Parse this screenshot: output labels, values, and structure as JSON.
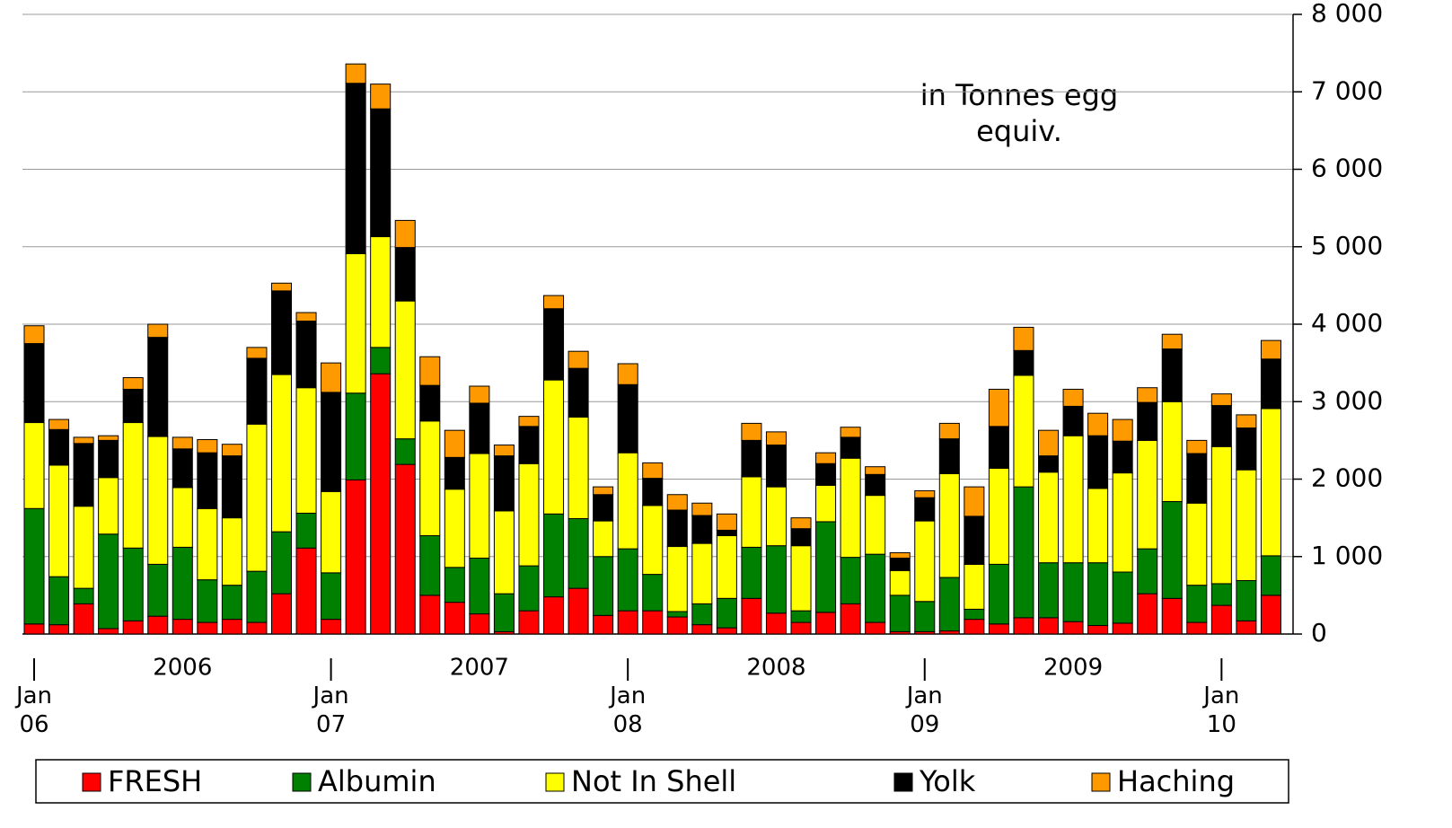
{
  "chart_data": {
    "type": "bar",
    "stacked": true,
    "annotation": "in Tonnes egg equiv.",
    "categories": [
      "Jan 06",
      null,
      null,
      null,
      null,
      null,
      null,
      null,
      null,
      null,
      null,
      null,
      "Jan 07",
      null,
      null,
      null,
      null,
      null,
      null,
      null,
      null,
      null,
      null,
      null,
      "Jan 08",
      null,
      null,
      null,
      null,
      null,
      null,
      null,
      null,
      null,
      null,
      null,
      "Jan 09",
      null,
      null,
      null,
      null,
      null,
      null,
      null,
      null,
      null,
      null,
      null,
      "Jan 10",
      null,
      null
    ],
    "year_labels": [
      "2006",
      "2007",
      "2008",
      "2009"
    ],
    "series": [
      {
        "name": "FRESH",
        "color": "#ff0000",
        "values": [
          130,
          120,
          390,
          70,
          170,
          230,
          190,
          150,
          190,
          150,
          520,
          1110,
          190,
          1990,
          3360,
          2190,
          500,
          410,
          260,
          30,
          300,
          480,
          590,
          240,
          300,
          300,
          220,
          120,
          80,
          460,
          270,
          150,
          280,
          390,
          150,
          30,
          30,
          40,
          190,
          130,
          210,
          210,
          160,
          110,
          140,
          520,
          460,
          150,
          370,
          170,
          500
        ]
      },
      {
        "name": "Albumin",
        "color": "#008000",
        "values": [
          1490,
          620,
          200,
          1220,
          940,
          670,
          930,
          550,
          440,
          660,
          800,
          450,
          600,
          1120,
          340,
          330,
          770,
          450,
          720,
          490,
          580,
          1070,
          900,
          760,
          800,
          470,
          70,
          270,
          380,
          660,
          870,
          150,
          1170,
          600,
          880,
          470,
          390,
          690,
          130,
          770,
          1690,
          710,
          760,
          810,
          660,
          580,
          1250,
          480,
          280,
          520,
          510
        ]
      },
      {
        "name": "Not In Shell",
        "color": "#ffff00",
        "values": [
          1110,
          1440,
          1060,
          730,
          1620,
          1650,
          770,
          920,
          870,
          1900,
          2030,
          1620,
          1050,
          1800,
          1430,
          1780,
          1480,
          1010,
          1350,
          1070,
          1320,
          1730,
          1310,
          460,
          1240,
          890,
          840,
          780,
          810,
          910,
          760,
          840,
          470,
          1280,
          760,
          320,
          1040,
          1340,
          580,
          1240,
          1440,
          1170,
          1640,
          960,
          1280,
          1400,
          1290,
          1060,
          1770,
          1430,
          1900
        ]
      },
      {
        "name": "Yolk",
        "color": "#000000",
        "values": [
          1020,
          460,
          810,
          480,
          430,
          1280,
          500,
          720,
          800,
          850,
          1080,
          860,
          1280,
          2200,
          1650,
          690,
          460,
          410,
          650,
          710,
          480,
          920,
          630,
          340,
          880,
          350,
          470,
          360,
          70,
          470,
          540,
          220,
          280,
          270,
          270,
          160,
          300,
          450,
          620,
          540,
          320,
          210,
          380,
          680,
          410,
          490,
          680,
          640,
          530,
          540,
          640
        ]
      },
      {
        "name": "Haching",
        "color": "#ff9900",
        "values": [
          230,
          130,
          80,
          60,
          150,
          170,
          150,
          170,
          150,
          140,
          100,
          110,
          380,
          250,
          320,
          350,
          370,
          350,
          220,
          140,
          130,
          170,
          220,
          100,
          270,
          200,
          200,
          160,
          210,
          220,
          170,
          140,
          140,
          130,
          100,
          70,
          90,
          200,
          380,
          480,
          300,
          330,
          220,
          290,
          280,
          190,
          190,
          170,
          150,
          170,
          240
        ]
      }
    ],
    "ylim": [
      0,
      8000
    ],
    "yticks": [
      {
        "value": 0,
        "label": "0"
      },
      {
        "value": 1000,
        "label": "1 000"
      },
      {
        "value": 2000,
        "label": "2 000"
      },
      {
        "value": 3000,
        "label": "3 000"
      },
      {
        "value": 4000,
        "label": "4 000"
      },
      {
        "value": 5000,
        "label": "5 000"
      },
      {
        "value": 6000,
        "label": "6 000"
      },
      {
        "value": 7000,
        "label": "7 000"
      },
      {
        "value": 8000,
        "label": "8 000"
      }
    ],
    "grid": true,
    "legend": "bottom"
  }
}
